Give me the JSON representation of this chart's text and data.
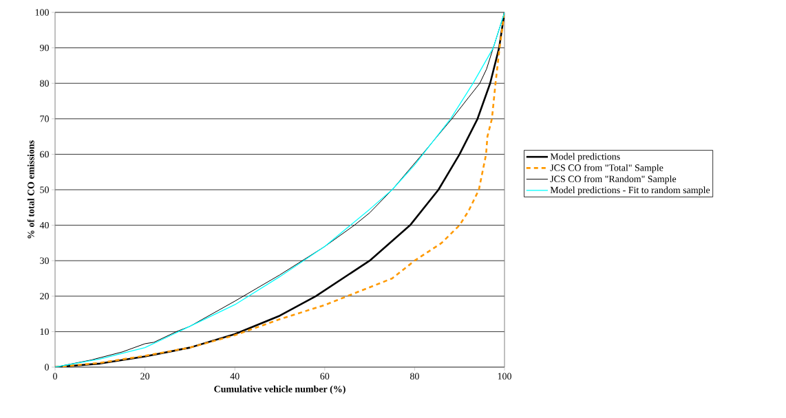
{
  "chart_data": {
    "type": "line",
    "xlabel": "Cumulative vehicle number (%)",
    "ylabel": "% of total CO emissions",
    "xlim": [
      0,
      100
    ],
    "ylim": [
      0,
      100
    ],
    "xticks": [
      0,
      20,
      40,
      60,
      80,
      100
    ],
    "yticks": [
      0,
      10,
      20,
      30,
      40,
      50,
      60,
      70,
      80,
      90,
      100
    ],
    "grid": "y",
    "legend": "right",
    "marker": "none",
    "series": [
      {
        "name": "Model predictions",
        "color": "#000000",
        "line_style": "solid",
        "x": [
          0,
          10,
          20,
          30,
          40,
          50,
          58,
          70,
          79,
          85.3,
          90,
          94,
          96.8,
          98.8,
          100
        ],
        "values": [
          0,
          1,
          3,
          5.5,
          9.3,
          14.5,
          20,
          30,
          40,
          50,
          60,
          70,
          80,
          90,
          100
        ]
      },
      {
        "name": "JCS CO from \"Total\" Sample",
        "color": "#ff9900",
        "line_style": "dashed",
        "x": [
          0,
          10,
          20,
          30,
          40,
          50,
          60,
          66,
          75,
          80,
          86,
          90,
          92,
          94.3,
          95.9,
          96.2,
          97.2,
          98,
          98.9,
          100
        ],
        "values": [
          0,
          1.2,
          3.2,
          5.5,
          9,
          13.5,
          17.5,
          20.5,
          25,
          30,
          35,
          40,
          44,
          50,
          60,
          65,
          70,
          80,
          90,
          100
        ]
      },
      {
        "name": "JCS CO from \"Random\" Sample",
        "color": "#000000",
        "line_style": "solid",
        "x": [
          0,
          8,
          15,
          20,
          22,
          27,
          30,
          40,
          50,
          60,
          66.6,
          70,
          75,
          81.7,
          88.3,
          92,
          94.5,
          96,
          97.5,
          100
        ],
        "values": [
          0,
          2,
          4.3,
          6.6,
          7,
          10,
          11.5,
          18.6,
          26,
          34,
          40,
          43.5,
          50,
          60,
          70,
          76,
          80,
          84,
          90,
          100
        ]
      },
      {
        "name": "Model predictions - Fit to random sample",
        "color": "#00ffff",
        "line_style": "solid",
        "x": [
          0,
          10,
          20,
          30,
          40,
          50,
          60,
          70,
          75,
          80,
          88,
          93,
          97.5,
          100
        ],
        "values": [
          0,
          2.3,
          5.5,
          11.5,
          17.6,
          25.5,
          34,
          44.5,
          50,
          57,
          70,
          80,
          90,
          100
        ]
      }
    ]
  }
}
